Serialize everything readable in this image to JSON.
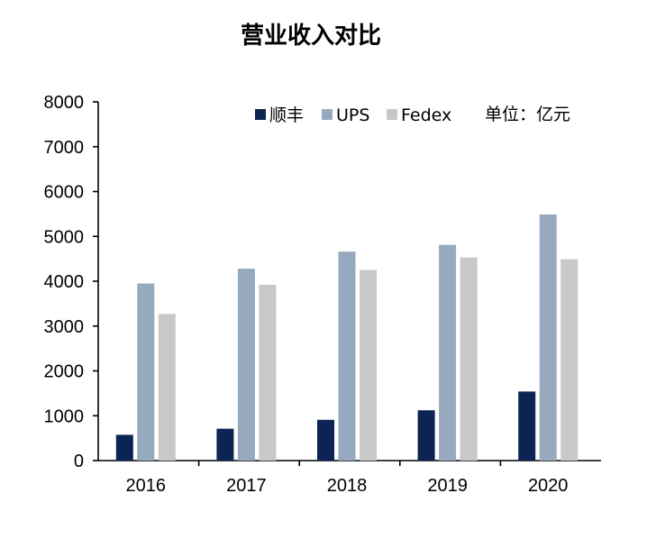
{
  "chart_data": {
    "type": "bar",
    "title": "营业收入对比",
    "unit_note": "单位：亿元",
    "categories": [
      "2016",
      "2017",
      "2018",
      "2019",
      "2020"
    ],
    "series": [
      {
        "name": "顺丰",
        "color": "#0b2454",
        "values": [
          575,
          711,
          909,
          1122,
          1540
        ]
      },
      {
        "name": "UPS",
        "color": "#97a9be",
        "values": [
          3950,
          4280,
          4660,
          4810,
          5490
        ]
      },
      {
        "name": "Fedex",
        "color": "#c8c8c8",
        "values": [
          3270,
          3920,
          4250,
          4530,
          4490
        ]
      }
    ],
    "ylim": [
      0,
      8000
    ],
    "yticks": [
      "0",
      "1000",
      "2000",
      "3000",
      "4000",
      "5000",
      "6000",
      "7000",
      "8000"
    ],
    "grid": false,
    "legend_position": "top"
  }
}
